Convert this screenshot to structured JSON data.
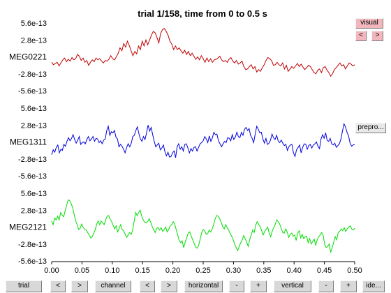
{
  "title": "trial 1/158, time from 0 to 0.5 s",
  "side_buttons": {
    "visual": "visual",
    "prev": "<",
    "next": ">",
    "preproc": "prepro..."
  },
  "bottom_buttons": {
    "trial": "trial",
    "trial_prev": "<",
    "trial_next": ">",
    "channel": "channel",
    "channel_prev": "<",
    "channel_next": ">",
    "horizontal": "horizontal",
    "horizontal_minus": "-",
    "horizontal_plus": "+",
    "vertical": "vertical",
    "vertical_minus": "-",
    "vertical_plus": "+",
    "identify": "ide..."
  },
  "chart_data": {
    "type": "line",
    "title": "trial 1/158, time from 0 to 0.5 s",
    "x_ticks": [
      "0.00",
      "0.05",
      "0.10",
      "0.15",
      "0.20",
      "0.25",
      "0.30",
      "0.35",
      "0.40",
      "0.45",
      "0.50"
    ],
    "xlim": [
      0,
      0.5
    ],
    "grid": false,
    "panels": [
      {
        "channel": "MEG0221",
        "color": "#c00000",
        "ylim": [
          -5.6e-13,
          5.6e-13
        ],
        "y_ticks": [
          "5.6e-13",
          "2.8e-13",
          "",
          "-2.8e-13",
          "-5.6e-13"
        ],
        "values": [
          -0.9,
          -1.3,
          -1.1,
          -0.9,
          -1.5,
          -1.0,
          -0.5,
          -0.2,
          -0.8,
          -0.4,
          -0.7,
          -0.1,
          -0.5,
          -0.3,
          0.4,
          0.1,
          -0.6,
          -0.2,
          -0.9,
          -0.6,
          -1.4,
          -0.9,
          -0.5,
          -0.8,
          -0.2,
          -0.5,
          -0.3,
          -0.7,
          -1.0,
          -0.6,
          -0.7,
          -0.4,
          0.2,
          -0.3,
          -0.5,
          0.0,
          0.6,
          1.5,
          1.0,
          2.2,
          1.6,
          2.6,
          1.9,
          1.0,
          0.2,
          0.9,
          0.5,
          1.8,
          1.2,
          2.6,
          1.8,
          2.8,
          2.0,
          2.8,
          3.6,
          4.2,
          4.0,
          3.2,
          2.3,
          3.9,
          4.5,
          4.7,
          4.2,
          3.6,
          2.6,
          2.1,
          1.2,
          1.8,
          1.2,
          1.5,
          1.0,
          0.6,
          1.1,
          0.4,
          0.9,
          0.2,
          0.6,
          0.1,
          -0.4,
          0.0,
          -0.5,
          0.2,
          -0.3,
          -0.9,
          -0.2,
          -0.8,
          -0.3,
          -0.9,
          -0.5,
          -0.4,
          -0.2,
          0.1,
          -0.5,
          -0.8,
          -0.6,
          -0.9,
          -0.4,
          -0.1,
          -0.7,
          -1.0,
          -0.6,
          -1.2,
          -1.0,
          -0.7,
          -1.6,
          -2.1,
          -2.0,
          -1.6,
          -1.3,
          -2.0,
          -1.6,
          -2.5,
          -2.1,
          -2.4,
          -1.8,
          -1.3,
          -0.6,
          -0.1,
          -0.3,
          -0.6,
          -1.4,
          -1.3,
          -0.9,
          -1.3,
          -1.5,
          -1.0,
          -2.0,
          -1.4,
          -2.4,
          -2.0,
          -1.6,
          -1.9,
          -1.5,
          -1.1,
          -1.6,
          -1.2,
          -1.7,
          -2.1,
          -1.8,
          -1.4,
          -1.6,
          -2.1,
          -2.6,
          -2.8,
          -2.2,
          -2.0,
          -2.6,
          -1.8,
          -1.6,
          -2.2,
          -2.6,
          -3.2,
          -2.8,
          -2.1,
          -1.8,
          -1.4,
          -1.0,
          -1.5,
          -1.3,
          -2.0,
          -1.5,
          -1.0,
          -1.2,
          -1.5,
          -1.3
        ]
      },
      {
        "channel": "MEG1311",
        "color": "#0000e0",
        "ylim": [
          -5.6e-13,
          5.6e-13
        ],
        "y_ticks": [
          "5.6e-13",
          "2.8e-13",
          "",
          "-2.8e-13",
          "-5.6e-13"
        ],
        "values": [
          -2.1,
          -1.3,
          -1.7,
          -0.9,
          -0.5,
          -1.8,
          -1.2,
          -1.4,
          -0.4,
          -0.7,
          0.1,
          0.7,
          0.2,
          0.6,
          1.2,
          0.4,
          -0.2,
          0.3,
          0.9,
          -0.4,
          -0.1,
          0.0,
          -0.3,
          0.4,
          0.9,
          0.2,
          0.5,
          0.9,
          0.1,
          0.6,
          0.5,
          -0.1,
          0.2,
          -0.3,
          0.3,
          0.5,
          1.9,
          2.6,
          1.1,
          1.7,
          1.5,
          1.9,
          0.8,
          0.5,
          -0.8,
          -0.4,
          -0.7,
          -1.2,
          -1.8,
          -0.9,
          -0.3,
          -0.8,
          -0.2,
          0.9,
          1.1,
          1.9,
          2.5,
          1.4,
          0.5,
          0.1,
          0.9,
          0.4,
          1.5,
          2.8,
          1.8,
          2.4,
          1.2,
          0.1,
          -0.8,
          -0.5,
          -0.2,
          -1.3,
          -1.0,
          -0.5,
          -1.6,
          -2.3,
          -1.7,
          -2.5,
          -2.4,
          -1.8,
          -1.5,
          -2.6,
          -0.8,
          -0.3,
          -1.2,
          -0.8,
          -1.5,
          -0.4,
          -0.3,
          -1.0,
          -1.8,
          -1.1,
          -1.5,
          -0.9,
          -0.8,
          -1.5,
          -0.9,
          -0.3,
          -0.1,
          0.2,
          0.9,
          0.5,
          -0.1,
          1.0,
          0.1,
          0.7,
          1.6,
          1.2,
          1.3,
          0.2,
          -0.3,
          -0.8,
          -0.3,
          0.1,
          -0.1,
          0.7,
          0.6,
          0.2,
          1.2,
          0.4,
          0.8,
          1.6,
          0.9,
          0.7,
          1.6,
          1.1,
          2.1,
          2.4,
          1.9,
          2.2,
          1.1,
          0.6,
          -0.1,
          1.3,
          2.6,
          2.1,
          1.5,
          1.6,
          0.5,
          -0.2,
          0.6,
          -0.4,
          -0.2,
          0.3,
          1.3,
          0.7,
          0.4,
          1.1,
          0.2,
          -0.1,
          0.3,
          -0.2,
          -0.6,
          -0.4,
          -1.4,
          -0.8,
          -0.5,
          -0.4,
          -1.8,
          -2.4,
          -1.3,
          -0.9,
          -0.5,
          -1.8,
          -0.9,
          -0.3,
          -0.4,
          -1.2,
          -0.6,
          -0.4,
          -1.0,
          -0.5,
          -0.3,
          0.0,
          -0.7,
          -1.1,
          0.5,
          1.2,
          0.6,
          1.5,
          0.3,
          0.1,
          0.6,
          -0.3,
          -0.5,
          -0.2,
          -0.9,
          -0.6,
          -0.3,
          0.5,
          1.8,
          3.0,
          2.5,
          1.6,
          1.0,
          -0.2,
          -0.7,
          -0.5,
          -0.4
        ]
      },
      {
        "channel": "MEG2121",
        "color": "#00dd00",
        "ylim": [
          -5.6e-13,
          5.6e-13
        ],
        "y_ticks": [
          "5.6e-13",
          "2.8e-13",
          "",
          "-2.8e-13",
          "-5.6e-13"
        ],
        "values": [
          1.0,
          0.4,
          1.5,
          1.2,
          1.8,
          1.2,
          2.4,
          2.0,
          1.7,
          2.7,
          3.6,
          4.5,
          4.4,
          3.9,
          3.2,
          2.1,
          1.0,
          0.4,
          -0.4,
          -0.2,
          0.5,
          0.0,
          -0.4,
          -0.5,
          -0.9,
          -1.3,
          -1.8,
          -1.6,
          -1.0,
          -0.5,
          0.5,
          1.0,
          0.4,
          1.0,
          0.7,
          0.4,
          1.2,
          1.8,
          1.9,
          1.3,
          0.9,
          0.3,
          -0.3,
          0.2,
          -0.8,
          -0.2,
          0.4,
          -0.4,
          -0.6,
          -1.2,
          -1.7,
          -1.3,
          -0.9,
          -1.2,
          -0.5,
          1.0,
          2.4,
          1.9,
          2.4,
          2.8,
          1.8,
          1.2,
          0.8,
          0.7,
          0.9,
          1.4,
          0.8,
          0.1,
          -0.4,
          -0.9,
          -0.2,
          -0.1,
          -0.5,
          -0.1,
          -0.7,
          -0.4,
          0.0,
          -0.8,
          -0.4,
          0.2,
          0.4,
          0.9,
          0.5,
          -0.4,
          -1.3,
          -2.2,
          -2.6,
          -2.3,
          -3.4,
          -2.5,
          -1.8,
          -1.0,
          -0.8,
          -1.5,
          -2.1,
          -2.7,
          -3.3,
          -3.5,
          -3.0,
          -2.0,
          -0.9,
          -0.4,
          -0.6,
          -1.2,
          -1.1,
          -0.5,
          -0.8,
          -0.3,
          0.4,
          1.4,
          1.9,
          1.8,
          1.4,
          0.8,
          0.1,
          -0.3,
          0.4,
          -0.1,
          -0.5,
          -1.1,
          -1.5,
          -2.1,
          -2.8,
          -3.4,
          -3.9,
          -3.2,
          -2.6,
          -2.1,
          -1.4,
          -1.9,
          -2.5,
          -3.2,
          -2.1,
          -1.3,
          -0.5,
          -0.9,
          0.3,
          0.9,
          0.4,
          0.1,
          -0.6,
          -1.3,
          -0.7,
          -0.4,
          0.0,
          -1.0,
          -1.6,
          -0.7,
          -0.1,
          0.4,
          1.2,
          0.9,
          0.5,
          -0.2,
          -0.9,
          -1.0,
          -0.3,
          -0.8,
          -1.7,
          -1.2,
          -1.0,
          -1.5,
          -1.3,
          -2.2,
          -1.0,
          -0.6,
          -1.8,
          -1.2,
          -1.9,
          -1.6,
          -1.5,
          -2.6,
          -1.9,
          -2.8,
          -2.4,
          -2.0,
          -3.0,
          -2.1,
          -1.6,
          -1.3,
          -0.9,
          -1.4,
          -2.9,
          -3.4,
          -3.2,
          -2.8,
          -4.2,
          -3.4,
          -2.5,
          -1.6,
          -2.1,
          -0.9,
          -0.7,
          -0.3,
          -0.6,
          -0.1,
          -0.7,
          -0.3,
          0.0,
          0.2,
          -0.3,
          -0.5,
          -0.2
        ]
      }
    ]
  }
}
